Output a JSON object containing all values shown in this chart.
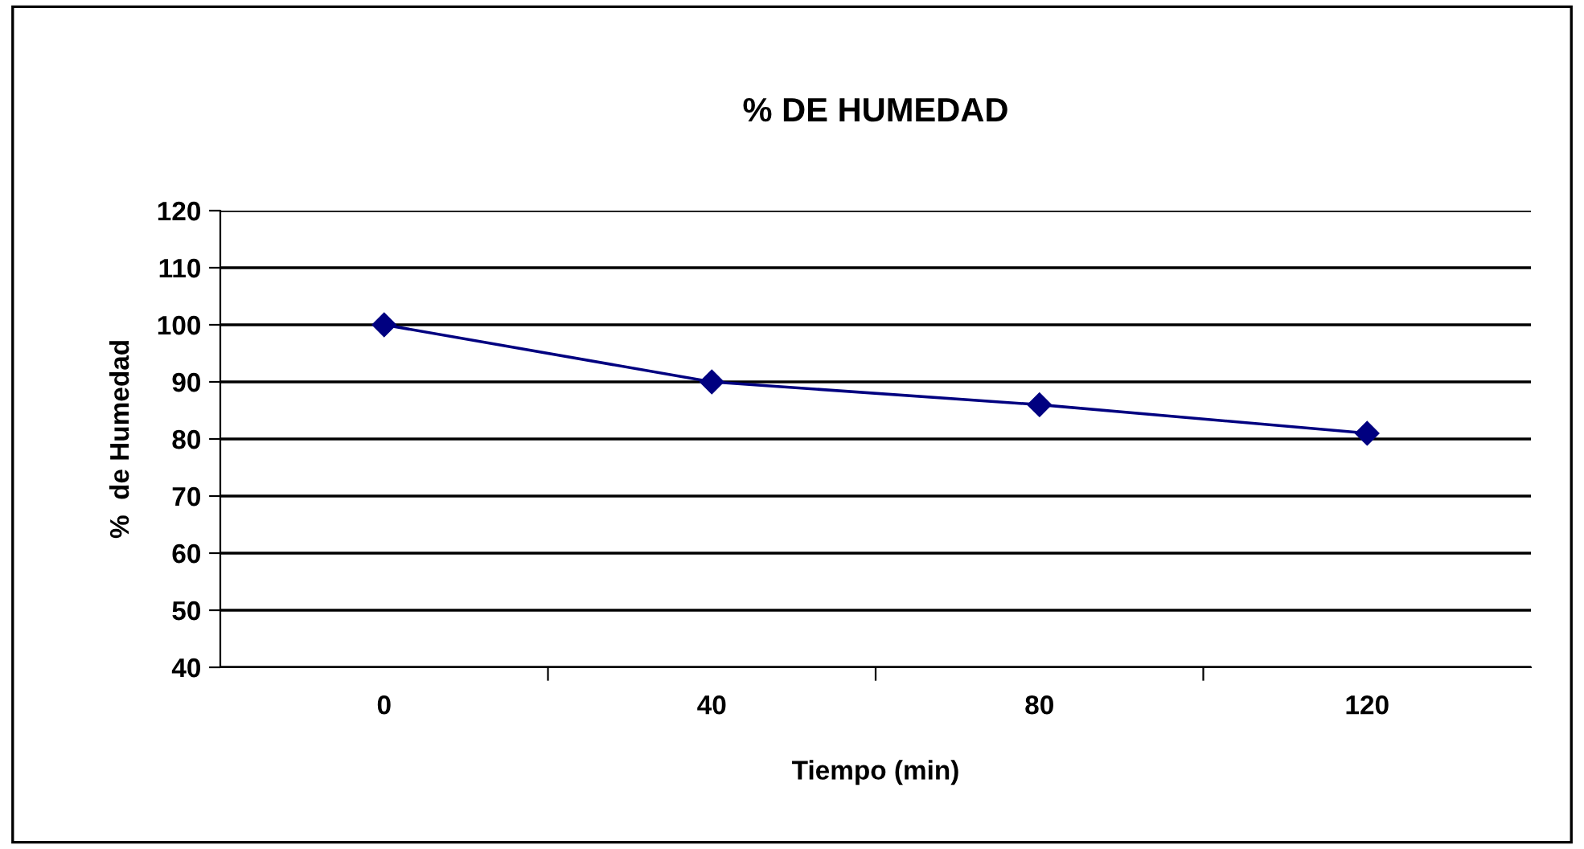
{
  "chart_data": {
    "type": "line",
    "title": "% DE HUMEDAD",
    "xlabel": "Tiempo (min)",
    "ylabel": "%  de Humedad",
    "categories": [
      "0",
      "40",
      "80",
      "120"
    ],
    "series": [
      {
        "color": "#000080",
        "values": [
          100,
          90,
          86,
          81
        ]
      }
    ],
    "ylim": [
      40,
      120
    ],
    "yticks": [
      40,
      50,
      60,
      70,
      80,
      90,
      100,
      110,
      120
    ],
    "grid": "y",
    "marker": "diamond",
    "line_style": "solid",
    "legend": false
  }
}
